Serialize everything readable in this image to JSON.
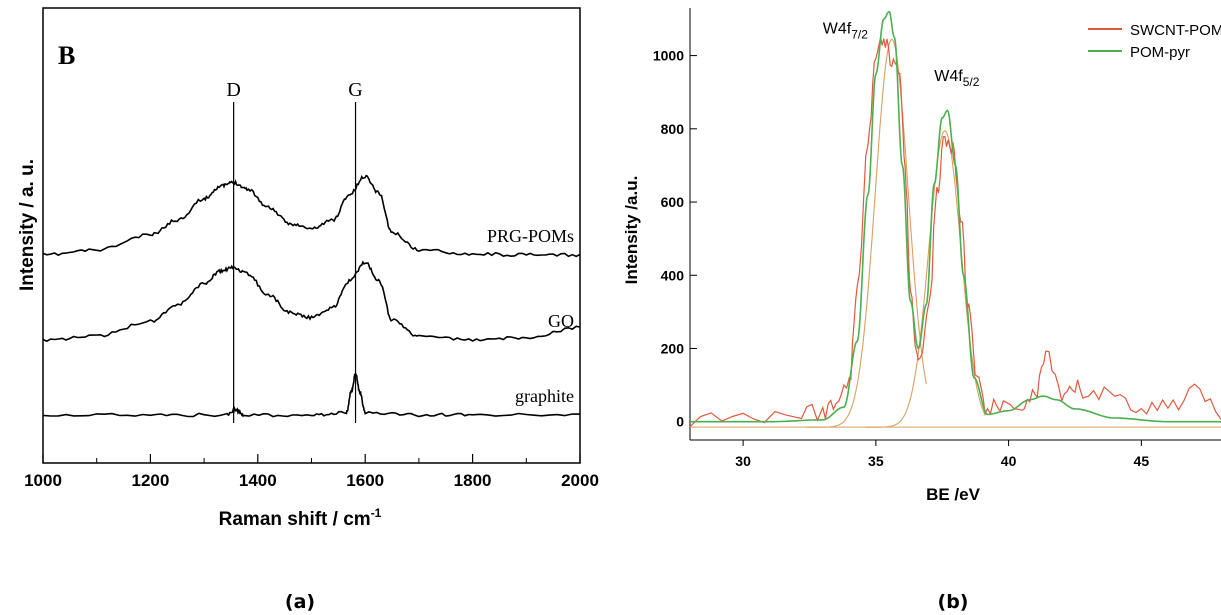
{
  "chart_data": [
    {
      "type": "line",
      "panel_label": "B",
      "caption": "(a)",
      "xlabel": "Raman shift / cm",
      "xlabel_superscript": "-1",
      "ylabel": "Intensity / a. u.",
      "xlim": [
        1000,
        2000
      ],
      "xticks": [
        1000,
        1200,
        1400,
        1600,
        1800,
        2000
      ],
      "yticks_shown": false,
      "grid": false,
      "legend": "none",
      "reference_lines": [
        {
          "label": "D",
          "x": 1355
        },
        {
          "label": "G",
          "x": 1582
        }
      ],
      "series": [
        {
          "name": "PRG-POMs",
          "x": [
            1000,
            1100,
            1200,
            1250,
            1300,
            1330,
            1355,
            1380,
            1420,
            1460,
            1500,
            1540,
            1570,
            1600,
            1625,
            1650,
            1700,
            1800,
            1900,
            2000
          ],
          "y": [
            0.0,
            0.04,
            0.16,
            0.28,
            0.45,
            0.55,
            0.58,
            0.53,
            0.38,
            0.25,
            0.21,
            0.28,
            0.48,
            0.63,
            0.5,
            0.18,
            0.04,
            0.01,
            0.0,
            0.0
          ]
        },
        {
          "name": "GO",
          "x": [
            1000,
            1100,
            1200,
            1250,
            1300,
            1330,
            1355,
            1380,
            1420,
            1460,
            1500,
            1540,
            1570,
            1600,
            1625,
            1650,
            1700,
            1800,
            1900,
            2000
          ],
          "y": [
            0.0,
            0.03,
            0.15,
            0.28,
            0.45,
            0.55,
            0.58,
            0.53,
            0.36,
            0.22,
            0.18,
            0.26,
            0.47,
            0.62,
            0.48,
            0.16,
            0.03,
            0.0,
            0.02,
            0.1
          ]
        },
        {
          "name": "graphite",
          "x": [
            1000,
            1200,
            1340,
            1358,
            1375,
            1500,
            1565,
            1575,
            1582,
            1590,
            1600,
            1700,
            1800,
            2000
          ],
          "y": [
            0.0,
            0.0,
            0.0,
            0.04,
            0.0,
            0.0,
            0.02,
            0.2,
            0.33,
            0.18,
            0.02,
            0.0,
            0.0,
            0.0
          ]
        }
      ]
    },
    {
      "type": "line",
      "caption": "(b)",
      "xlabel": "BE /eV",
      "ylabel": "Intensity /a.u.",
      "xlim": [
        28,
        48
      ],
      "ylim": [
        -50,
        1130
      ],
      "xticks": [
        30,
        35,
        40,
        45
      ],
      "yticks": [
        0,
        200,
        400,
        600,
        800,
        1000
      ],
      "grid": false,
      "legend": "top-right",
      "annotations": [
        {
          "text": "W4f",
          "sub": "7/2",
          "x": 33.0,
          "y": 1060
        },
        {
          "text": "W4f",
          "sub": "5/2",
          "x": 37.2,
          "y": 930
        }
      ],
      "series": [
        {
          "name": "SWCNT-POM",
          "color": "#e2583e",
          "x": [
            28,
            30,
            32,
            33,
            33.5,
            34,
            34.3,
            34.7,
            35.0,
            35.3,
            35.6,
            35.9,
            36.1,
            36.3,
            36.6,
            37.0,
            37.3,
            37.6,
            37.9,
            38.2,
            38.5,
            38.8,
            39.2,
            39.8,
            40.5,
            41.0,
            41.4,
            42.0,
            42.5,
            43.0,
            44.0,
            45.0,
            46.0,
            47.0,
            48.0
          ],
          "y": [
            10,
            15,
            20,
            30,
            45,
            120,
            350,
            780,
            1000,
            1050,
            980,
            960,
            700,
            350,
            160,
            300,
            620,
            780,
            740,
            560,
            300,
            100,
            40,
            30,
            50,
            70,
            180,
            60,
            90,
            80,
            70,
            40,
            40,
            90,
            10
          ]
        },
        {
          "name": "POM-pyr",
          "color": "#4caf50",
          "x": [
            28,
            31,
            33,
            33.8,
            34.3,
            34.7,
            35.0,
            35.3,
            35.5,
            35.7,
            36.0,
            36.3,
            36.6,
            36.9,
            37.2,
            37.5,
            37.7,
            38.0,
            38.3,
            38.7,
            39.2,
            40.0,
            40.8,
            41.3,
            41.8,
            42.5,
            44.0,
            46.0,
            48.0
          ],
          "y": [
            0,
            0,
            5,
            40,
            220,
            620,
            950,
            1100,
            1120,
            1050,
            700,
            330,
            200,
            320,
            650,
            830,
            850,
            700,
            400,
            120,
            20,
            30,
            60,
            70,
            60,
            35,
            10,
            0,
            0
          ]
        }
      ]
    }
  ]
}
